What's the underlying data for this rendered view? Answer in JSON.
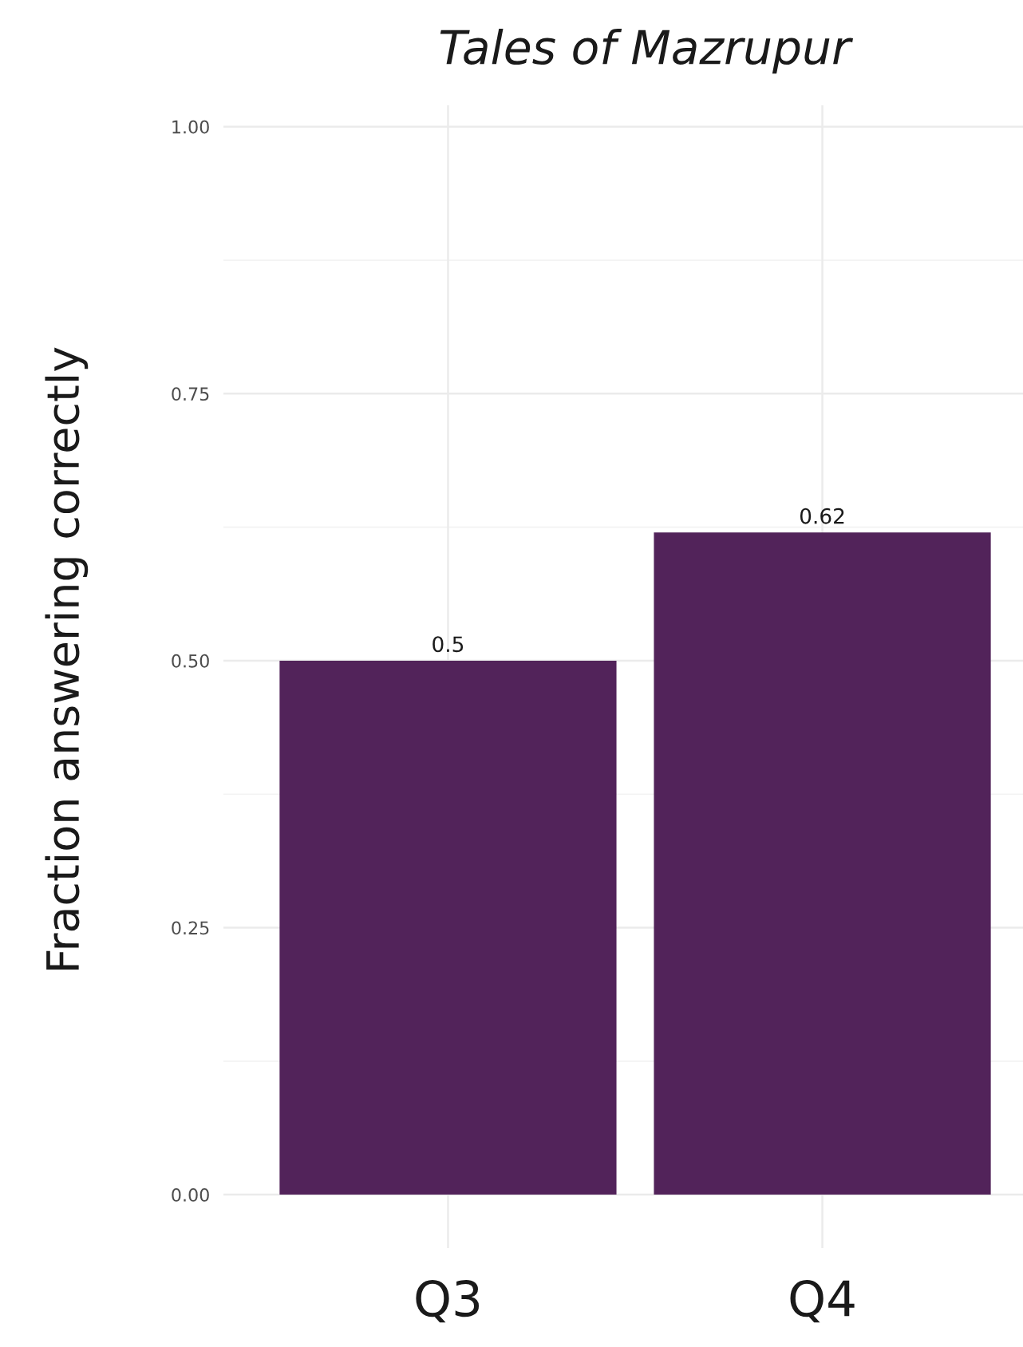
{
  "chart_data": {
    "type": "bar",
    "title": "Tales of Mazrupur",
    "ylabel": "Fraction answering correctly",
    "categories": [
      "Q3",
      "Q4"
    ],
    "values": [
      0.5,
      0.62
    ],
    "color": "#52235a",
    "ylim": [
      -0.05,
      1.02
    ],
    "yticks": [
      {
        "value": 0,
        "label": "0.00"
      },
      {
        "value": 0.25,
        "label": "0.25"
      },
      {
        "value": 0.5,
        "label": "0.50"
      },
      {
        "value": 0.75,
        "label": "0.75"
      },
      {
        "value": 1,
        "label": "1.00"
      }
    ],
    "grid": true,
    "data_labels": true
  }
}
